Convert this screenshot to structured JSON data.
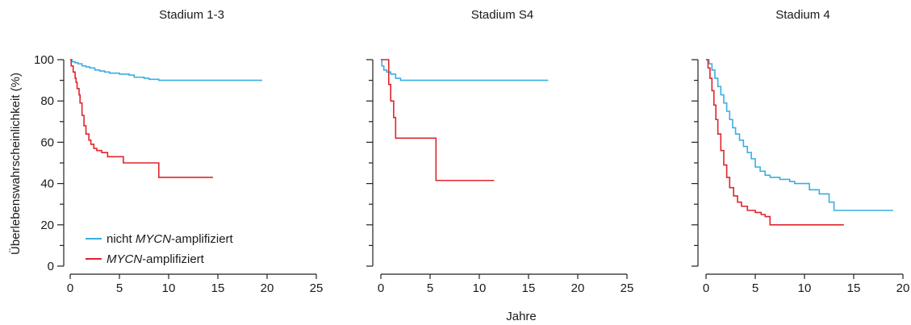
{
  "figure": {
    "ylabel": "Überlebenswahrscheinlichkeit (%)",
    "xlabel": "Jahre",
    "colors": {
      "not_amplified": "#3aaee0",
      "amplified": "#e0242b",
      "axis": "#222222"
    }
  },
  "chart_data": [
    {
      "type": "line",
      "title": "Stadium 1-3",
      "xlim": [
        0,
        25
      ],
      "ylim": [
        0,
        100
      ],
      "xticks": [
        "0",
        "5",
        "10",
        "15",
        "20",
        "25"
      ],
      "yticks": [
        "0",
        "20",
        "40",
        "60",
        "80",
        "100"
      ],
      "legend": {
        "position": "bottom-left",
        "entries": [
          {
            "prefix": "nicht ",
            "italic": "MYCN",
            "suffix": "-amplifiziert",
            "color": "#3aaee0"
          },
          {
            "prefix": "",
            "italic": "MYCN",
            "suffix": "-amplifiziert",
            "color": "#e0242b"
          }
        ]
      },
      "series": [
        {
          "name": "nicht MYCN-amplifiziert",
          "color": "#3aaee0",
          "x": [
            0,
            0.2,
            0.5,
            0.8,
            1.2,
            1.6,
            2.0,
            2.5,
            3.0,
            3.5,
            4.0,
            5.0,
            6.0,
            6.5,
            7.5,
            8.0,
            9.0,
            19.5
          ],
          "y": [
            100,
            99,
            98.5,
            98,
            97,
            96.5,
            96,
            95,
            94.5,
            94,
            93.5,
            93,
            92.5,
            91.5,
            91,
            90.5,
            90,
            90
          ]
        },
        {
          "name": "MYCN-amplifiziert",
          "color": "#e0242b",
          "x": [
            0,
            0.1,
            0.3,
            0.5,
            0.6,
            0.7,
            0.9,
            1.0,
            1.2,
            1.4,
            1.6,
            1.9,
            2.1,
            2.4,
            2.7,
            3.2,
            3.8,
            5.4,
            9.0,
            14.5
          ],
          "y": [
            100,
            97,
            94,
            91,
            89,
            86,
            83,
            79,
            73,
            68,
            64,
            61,
            59,
            57,
            56,
            55,
            53,
            50,
            43,
            43
          ]
        }
      ]
    },
    {
      "type": "line",
      "title": "Stadium S4",
      "xlim": [
        0,
        25
      ],
      "ylim": [
        0,
        100
      ],
      "xticks": [
        "0",
        "5",
        "10",
        "15",
        "20",
        "25"
      ],
      "yticks": [],
      "series": [
        {
          "name": "nicht MYCN-amplifiziert",
          "color": "#3aaee0",
          "x": [
            0,
            0.1,
            0.3,
            0.6,
            1.0,
            1.5,
            2.0,
            17.0
          ],
          "y": [
            100,
            97,
            95,
            94,
            93,
            91,
            90,
            90
          ]
        },
        {
          "name": "MYCN-amplifiziert",
          "color": "#e0242b",
          "x": [
            0,
            0.8,
            1.0,
            1.3,
            1.5,
            5.6,
            11.5
          ],
          "y": [
            100,
            88,
            80,
            72,
            62,
            41.5,
            41.5
          ]
        }
      ]
    },
    {
      "type": "line",
      "title": "Stadium 4",
      "xlim": [
        0,
        20
      ],
      "ylim": [
        0,
        100
      ],
      "xticks": [
        "0",
        "5",
        "10",
        "15",
        "20"
      ],
      "yticks": [],
      "series": [
        {
          "name": "nicht MYCN-amplifiziert",
          "color": "#3aaee0",
          "x": [
            0,
            0.3,
            0.6,
            0.9,
            1.2,
            1.5,
            1.8,
            2.1,
            2.4,
            2.7,
            3.0,
            3.4,
            3.8,
            4.2,
            4.6,
            5.0,
            5.5,
            6.0,
            6.5,
            7.0,
            7.5,
            8.0,
            8.5,
            9.0,
            10.0,
            10.5,
            11.5,
            12.5,
            13.0,
            19.0
          ],
          "y": [
            100,
            98,
            95,
            91,
            87,
            83,
            79,
            75,
            71,
            67,
            64,
            61,
            58,
            55,
            52,
            48,
            46,
            44,
            43,
            43,
            42,
            42,
            41,
            40,
            40,
            37,
            35,
            31,
            27,
            27
          ]
        },
        {
          "name": "MYCN-amplifiziert",
          "color": "#e0242b",
          "x": [
            0,
            0.2,
            0.4,
            0.6,
            0.8,
            1.0,
            1.2,
            1.5,
            1.8,
            2.1,
            2.4,
            2.8,
            3.2,
            3.6,
            4.2,
            5.0,
            5.6,
            6.0,
            6.5,
            14.0
          ],
          "y": [
            100,
            96,
            91,
            85,
            78,
            71,
            64,
            56,
            49,
            43,
            38,
            34,
            31,
            29,
            27,
            26,
            25,
            24,
            20,
            20
          ]
        }
      ]
    }
  ]
}
